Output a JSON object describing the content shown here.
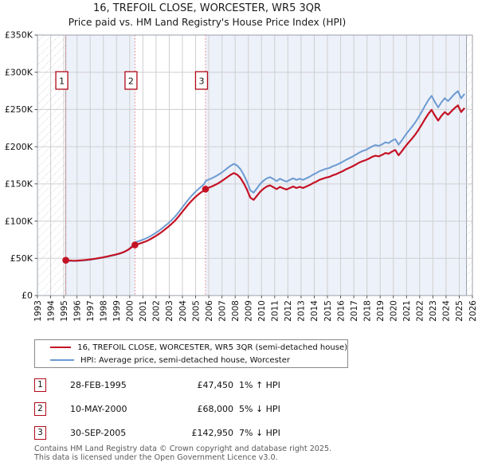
{
  "title": "16, TREFOIL CLOSE, WORCESTER, WR5 3QR",
  "subtitle": "Price paid vs. HM Land Registry's House Price Index (HPI)",
  "legend": {
    "property_label": "16, TREFOIL CLOSE, WORCESTER, WR5 3QR (semi-detached house)",
    "hpi_label": "HPI: Average price, semi-detached house, Worcester"
  },
  "sales": [
    {
      "num": "1",
      "date": "28-FEB-1995",
      "price": "£47,450",
      "hpi_diff": "1% ↑ HPI",
      "year": 1995.15,
      "value_k": 47.45
    },
    {
      "num": "2",
      "date": "10-MAY-2000",
      "price": "£68,000",
      "hpi_diff": "5% ↓ HPI",
      "year": 2000.4,
      "value_k": 68.0
    },
    {
      "num": "3",
      "date": "30-SEP-2005",
      "price": "£142,950",
      "hpi_diff": "7% ↓ HPI",
      "year": 2005.75,
      "value_k": 142.95
    }
  ],
  "footer": {
    "line1": "Contains HM Land Registry data © Crown copyright and database right 2025.",
    "line2": "This data is licensed under the Open Government Licence v3.0."
  },
  "chart_data": {
    "type": "line",
    "unit": "GBP thousands",
    "xlim": [
      1993,
      2026
    ],
    "ylim": [
      0,
      350
    ],
    "x_ticks": [
      1993,
      1994,
      1995,
      1996,
      1997,
      1998,
      1999,
      2000,
      2001,
      2002,
      2003,
      2004,
      2005,
      2006,
      2007,
      2008,
      2009,
      2010,
      2011,
      2012,
      2013,
      2014,
      2015,
      2016,
      2017,
      2018,
      2019,
      2020,
      2021,
      2022,
      2023,
      2024,
      2025,
      2026
    ],
    "y_ticks": [
      {
        "value": 0,
        "label": "£0"
      },
      {
        "value": 50,
        "label": "£50K"
      },
      {
        "value": 100,
        "label": "£100K"
      },
      {
        "value": 150,
        "label": "£150K"
      },
      {
        "value": 200,
        "label": "£200K"
      },
      {
        "value": 250,
        "label": "£250K"
      },
      {
        "value": 300,
        "label": "£300K"
      },
      {
        "value": 350,
        "label": "£350K"
      }
    ],
    "hatch_regions": [
      [
        1993,
        1995.15
      ],
      [
        2025.55,
        2026
      ]
    ],
    "shaded_regions": [
      [
        1995.15,
        2000.4
      ],
      [
        2005.75,
        2025.55
      ]
    ],
    "sale_line_years": [
      1995.15,
      2000.4,
      2005.75
    ],
    "x": [
      1995.15,
      1995.4,
      1995.65,
      1995.9,
      1996.15,
      1996.4,
      1996.65,
      1996.9,
      1997.15,
      1997.4,
      1997.65,
      1997.9,
      1998.15,
      1998.4,
      1998.65,
      1998.9,
      1999.15,
      1999.4,
      1999.65,
      1999.9,
      2000.15,
      2000.4,
      2000.65,
      2000.9,
      2001.15,
      2001.4,
      2001.65,
      2001.9,
      2002.15,
      2002.4,
      2002.65,
      2002.9,
      2003.15,
      2003.4,
      2003.65,
      2003.9,
      2004.15,
      2004.4,
      2004.65,
      2004.9,
      2005.15,
      2005.4,
      2005.65,
      2005.75,
      2005.9,
      2006.15,
      2006.4,
      2006.65,
      2006.9,
      2007.15,
      2007.4,
      2007.65,
      2007.9,
      2008.15,
      2008.4,
      2008.65,
      2008.9,
      2009.15,
      2009.4,
      2009.65,
      2009.9,
      2010.15,
      2010.4,
      2010.65,
      2010.9,
      2011.15,
      2011.4,
      2011.65,
      2011.9,
      2012.15,
      2012.4,
      2012.65,
      2012.9,
      2013.15,
      2013.4,
      2013.65,
      2013.9,
      2014.15,
      2014.4,
      2014.65,
      2014.9,
      2015.15,
      2015.4,
      2015.65,
      2015.9,
      2016.15,
      2016.4,
      2016.65,
      2016.9,
      2017.15,
      2017.4,
      2017.65,
      2017.9,
      2018.15,
      2018.4,
      2018.65,
      2018.9,
      2019.15,
      2019.4,
      2019.65,
      2019.9,
      2020.15,
      2020.4,
      2020.65,
      2020.9,
      2021.15,
      2021.4,
      2021.65,
      2021.9,
      2022.15,
      2022.4,
      2022.65,
      2022.9,
      2023.15,
      2023.4,
      2023.65,
      2023.9,
      2024.15,
      2024.4,
      2024.65,
      2024.9,
      2025.15,
      2025.4
    ],
    "series": [
      {
        "name": "property",
        "color": "#c41224",
        "values": [
          47.45,
          47.1,
          46.9,
          46.8,
          47.1,
          47.4,
          47.8,
          48.3,
          48.9,
          49.6,
          50.3,
          51.1,
          52.0,
          52.9,
          53.9,
          54.9,
          56.1,
          57.5,
          59.3,
          61.8,
          65.0,
          68.0,
          69.3,
          70.8,
          72.3,
          74.2,
          76.5,
          79.2,
          82.0,
          85.0,
          88.5,
          92.0,
          95.8,
          100.0,
          105.0,
          110.5,
          116.0,
          121.5,
          126.5,
          131.0,
          135.0,
          138.5,
          141.2,
          142.95,
          144.3,
          146.0,
          148.0,
          150.2,
          152.8,
          155.8,
          159.0,
          162.2,
          164.5,
          162.5,
          158.0,
          151.0,
          142.0,
          131.5,
          128.5,
          134.0,
          139.5,
          143.5,
          146.5,
          148.0,
          145.5,
          143.0,
          146.0,
          144.0,
          142.5,
          144.5,
          146.5,
          144.5,
          146.0,
          144.5,
          146.5,
          148.5,
          151.0,
          153.0,
          155.5,
          157.0,
          158.5,
          159.5,
          161.5,
          163.0,
          165.0,
          167.0,
          169.5,
          171.5,
          173.5,
          176.0,
          178.5,
          180.5,
          182.0,
          184.0,
          186.5,
          188.0,
          187.0,
          189.0,
          191.5,
          190.5,
          193.5,
          195.5,
          188.5,
          194.0,
          200.0,
          205.5,
          210.5,
          216.0,
          222.5,
          229.5,
          237.0,
          244.0,
          249.5,
          242.0,
          235.0,
          241.5,
          246.5,
          243.0,
          247.5,
          252.0,
          255.5,
          246.5,
          252.0
        ]
      },
      {
        "name": "hpi",
        "color": "#6c9bd2",
        "values": [
          47.0,
          46.7,
          46.5,
          46.4,
          46.7,
          47.0,
          47.4,
          47.9,
          48.5,
          49.2,
          49.9,
          50.7,
          51.6,
          52.5,
          53.5,
          54.6,
          55.8,
          57.3,
          59.2,
          61.9,
          66.0,
          71.6,
          72.9,
          74.5,
          76.1,
          78.1,
          80.5,
          83.4,
          86.3,
          89.5,
          93.2,
          96.8,
          100.8,
          105.3,
          110.5,
          116.3,
          122.1,
          127.9,
          133.2,
          137.9,
          142.0,
          146.0,
          150.0,
          153.7,
          155.2,
          157.0,
          159.1,
          161.5,
          164.3,
          167.5,
          171.0,
          174.4,
          176.9,
          174.7,
          169.9,
          162.4,
          152.7,
          141.4,
          138.2,
          144.1,
          150.0,
          154.3,
          157.5,
          159.1,
          156.5,
          153.8,
          157.0,
          154.8,
          153.2,
          155.4,
          157.5,
          155.4,
          157.0,
          155.4,
          157.5,
          159.7,
          162.4,
          164.5,
          167.2,
          168.8,
          170.4,
          171.5,
          173.7,
          175.3,
          177.4,
          179.6,
          182.3,
          184.4,
          186.6,
          189.3,
          191.9,
          194.1,
          195.7,
          197.9,
          200.5,
          202.2,
          201.1,
          203.2,
          205.9,
          204.8,
          208.1,
          210.2,
          202.7,
          208.6,
          215.1,
          221.0,
          226.4,
          232.3,
          239.3,
          246.8,
          254.8,
          262.4,
          268.3,
          260.2,
          252.7,
          259.7,
          265.1,
          261.3,
          266.1,
          271.0,
          274.7,
          265.1,
          271.0
        ]
      }
    ],
    "colors": {
      "band": "#edf1fa",
      "grid": "#cfcfcf",
      "frame": "#9aa0a8",
      "hatch_line": "#c6cad2",
      "sale_dotted_line": "#ef8585",
      "marker_box_border": "#b00a18",
      "property": "#c41224",
      "hpi": "#6c9bd2"
    }
  }
}
